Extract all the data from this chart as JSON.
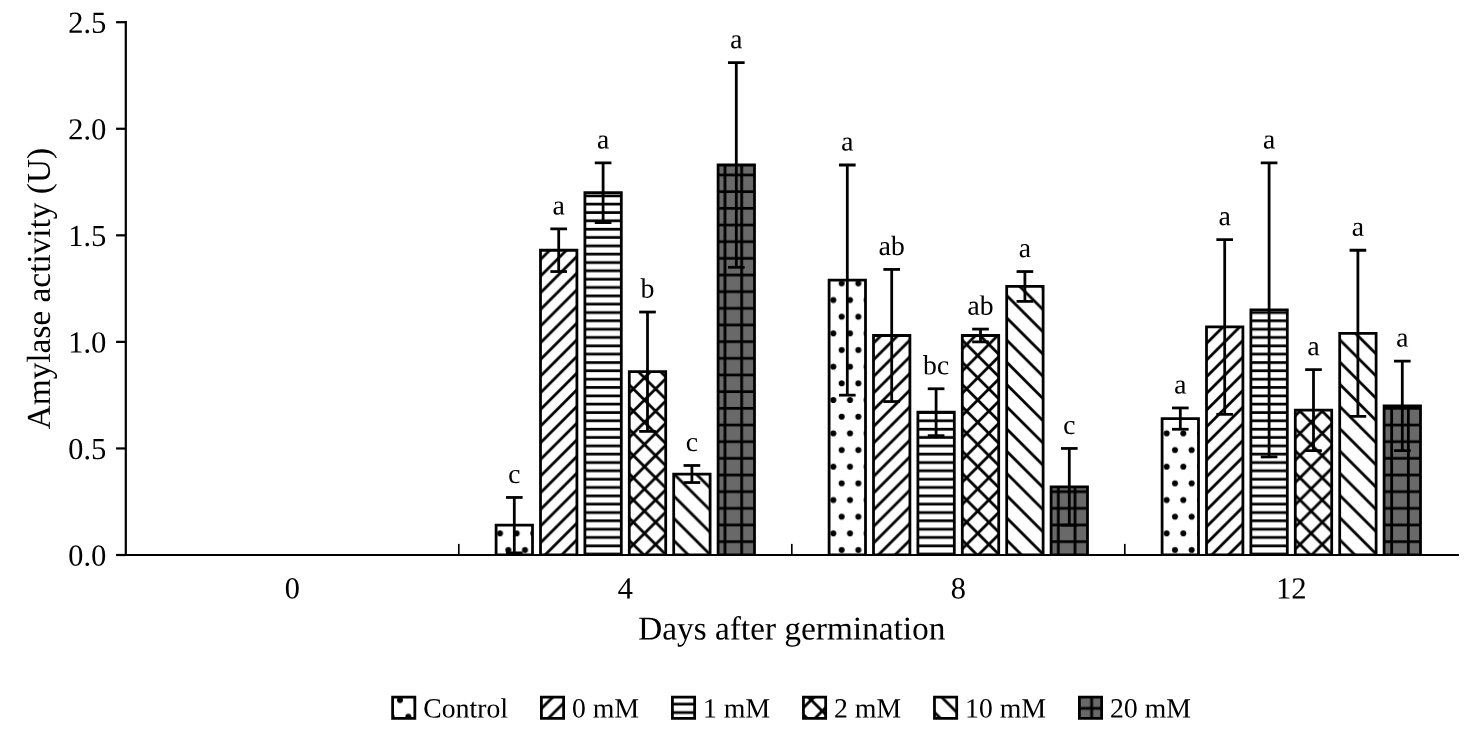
{
  "chart_data": {
    "type": "bar",
    "xlabel": "Days after germination",
    "ylabel": "Amylase activity (U)",
    "categories": [
      "0",
      "4",
      "8",
      "12"
    ],
    "ylim": [
      0,
      2.5
    ],
    "yticks": [
      {
        "value": 0,
        "label": "0.0"
      },
      {
        "value": 0.5,
        "label": "0.5"
      },
      {
        "value": 1,
        "label": "1.0"
      },
      {
        "value": 1.5,
        "label": "1.5"
      },
      {
        "value": 2,
        "label": "2.0"
      },
      {
        "value": 2.5,
        "label": "2.5"
      }
    ],
    "grid": false,
    "legend": "bottom",
    "series": [
      {
        "name": "Control",
        "values": [
          null,
          0.14,
          1.29,
          0.64
        ],
        "errors": [
          null,
          0.13,
          0.54,
          0.05
        ]
      },
      {
        "name": "0 mM",
        "values": [
          null,
          1.43,
          1.03,
          1.07
        ],
        "errors": [
          null,
          0.1,
          0.31,
          0.41
        ]
      },
      {
        "name": "1 mM",
        "values": [
          null,
          1.7,
          0.67,
          1.15
        ],
        "errors": [
          null,
          0.14,
          0.11,
          0.69
        ]
      },
      {
        "name": "2 mM",
        "values": [
          null,
          0.86,
          1.03,
          0.68
        ],
        "errors": [
          null,
          0.28,
          0.03,
          0.19
        ]
      },
      {
        "name": "10 mM",
        "values": [
          null,
          0.38,
          1.26,
          1.04
        ],
        "errors": [
          null,
          0.04,
          0.07,
          0.39
        ]
      },
      {
        "name": "20 mM",
        "values": [
          null,
          1.83,
          0.32,
          0.7
        ],
        "errors": [
          null,
          0.48,
          0.18,
          0.21
        ]
      }
    ],
    "annotations": [
      "c",
      "a",
      "a",
      "b",
      "c",
      "a",
      "a",
      "ab",
      "bc",
      "ab",
      "a",
      "c",
      "a",
      "a",
      "a",
      "a",
      "a",
      "a"
    ]
  }
}
